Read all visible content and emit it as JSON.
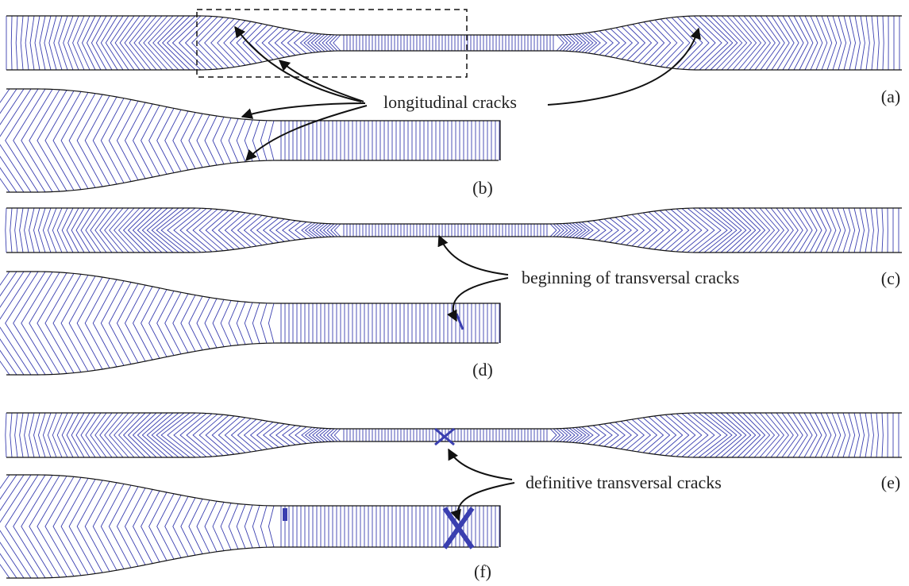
{
  "annotations": [
    "longitudinal cracks",
    "beginning of transversal cracks",
    "definitive transversal cracks"
  ],
  "panel_labels": [
    "(a)",
    "(b)",
    "(c)",
    "(d)",
    "(e)",
    "(f)"
  ]
}
